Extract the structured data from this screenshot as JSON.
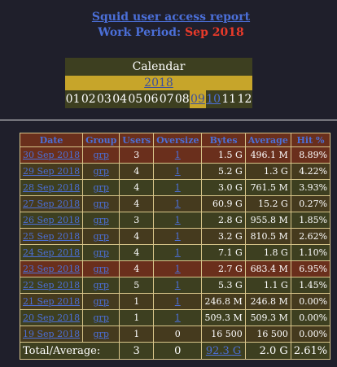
{
  "header": {
    "title": "Squid user access report",
    "period_label": "Work Period:",
    "period_value": "Sep 2018"
  },
  "calendar": {
    "title": "Calendar",
    "year": "2018",
    "months": [
      "01",
      "02",
      "03",
      "04",
      "05",
      "06",
      "07",
      "08",
      "09",
      "10",
      "11",
      "12"
    ],
    "current_month": "09",
    "linked_months": [
      "09",
      "10"
    ]
  },
  "table": {
    "columns": [
      "Date",
      "Group",
      "Users",
      "Oversize",
      "Bytes",
      "Average",
      "Hit %"
    ],
    "rows": [
      {
        "date": "30 Sep 2018",
        "group": "grp",
        "users": "3",
        "oversize": "1",
        "bytes": "1.5 G",
        "average": "496.1 M",
        "hit": "8.89%"
      },
      {
        "date": "29 Sep 2018",
        "group": "grp",
        "users": "4",
        "oversize": "1",
        "bytes": "5.2 G",
        "average": "1.3 G",
        "hit": "4.22%"
      },
      {
        "date": "28 Sep 2018",
        "group": "grp",
        "users": "4",
        "oversize": "1",
        "bytes": "3.0 G",
        "average": "761.5 M",
        "hit": "3.93%"
      },
      {
        "date": "27 Sep 2018",
        "group": "grp",
        "users": "4",
        "oversize": "1",
        "bytes": "60.9 G",
        "average": "15.2 G",
        "hit": "0.27%"
      },
      {
        "date": "26 Sep 2018",
        "group": "grp",
        "users": "3",
        "oversize": "1",
        "bytes": "2.8 G",
        "average": "955.8 M",
        "hit": "1.85%"
      },
      {
        "date": "25 Sep 2018",
        "group": "grp",
        "users": "4",
        "oversize": "1",
        "bytes": "3.2 G",
        "average": "810.5 M",
        "hit": "2.62%"
      },
      {
        "date": "24 Sep 2018",
        "group": "grp",
        "users": "4",
        "oversize": "1",
        "bytes": "7.1 G",
        "average": "1.8 G",
        "hit": "1.10%"
      },
      {
        "date": "23 Sep 2018",
        "group": "grp",
        "users": "4",
        "oversize": "1",
        "bytes": "2.7 G",
        "average": "683.4 M",
        "hit": "6.95%"
      },
      {
        "date": "22 Sep 2018",
        "group": "grp",
        "users": "5",
        "oversize": "1",
        "bytes": "5.3 G",
        "average": "1.1 G",
        "hit": "1.45%"
      },
      {
        "date": "21 Sep 2018",
        "group": "grp",
        "users": "1",
        "oversize": "1",
        "bytes": "246.8 M",
        "average": "246.8 M",
        "hit": "0.00%"
      },
      {
        "date": "20 Sep 2018",
        "group": "grp",
        "users": "1",
        "oversize": "1",
        "bytes": "509.3 M",
        "average": "509.3 M",
        "hit": "0.00%"
      },
      {
        "date": "19 Sep 2018",
        "group": "grp",
        "users": "1",
        "oversize": "0",
        "bytes": "16 500",
        "average": "16 500",
        "hit": "0.00%"
      }
    ],
    "total": {
      "label": "Total/Average:",
      "users": "3",
      "oversize": "0",
      "bytes": "92.3 G",
      "average": "2.0 G",
      "hit": "2.61%"
    }
  },
  "colors": {
    "background": "#1f1f2b",
    "link": "#4b6fd8",
    "period_value": "#e83a2a",
    "row_odd": "#3d3f20",
    "row_highlight": "#6a2f1c",
    "gold": "#c7a52a"
  }
}
